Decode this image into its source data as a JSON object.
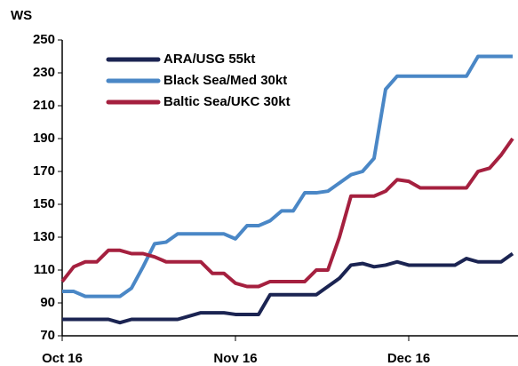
{
  "chart_data": {
    "type": "line",
    "y_label": "WS",
    "categories": [
      "Oct 16",
      null,
      null,
      null,
      null,
      null,
      null,
      null,
      null,
      null,
      null,
      null,
      null,
      null,
      null,
      "Nov 16",
      null,
      null,
      null,
      null,
      null,
      null,
      null,
      null,
      null,
      null,
      null,
      null,
      null,
      null,
      "Dec 16",
      null,
      null,
      null,
      null,
      null,
      null,
      null,
      null,
      null
    ],
    "series": [
      {
        "name": "ARA/USG 55kt",
        "color": "#1b2452",
        "values": [
          80,
          80,
          80,
          80,
          80,
          78,
          80,
          80,
          80,
          80,
          80,
          82,
          84,
          84,
          84,
          83,
          83,
          83,
          95,
          95,
          95,
          95,
          95,
          100,
          105,
          113,
          114,
          112,
          113,
          115,
          113,
          113,
          113,
          113,
          113,
          117,
          115,
          115,
          115,
          120
        ]
      },
      {
        "name": "Black Sea/Med 30kt",
        "color": "#4a87c6",
        "values": [
          97,
          97,
          94,
          94,
          94,
          94,
          99,
          112,
          126,
          127,
          132,
          132,
          132,
          132,
          132,
          129,
          137,
          137,
          140,
          146,
          146,
          157,
          157,
          158,
          163,
          168,
          170,
          178,
          220,
          228,
          228,
          228,
          228,
          228,
          228,
          228,
          240,
          240,
          240,
          240
        ]
      },
      {
        "name": "Baltic Sea/UKC 30kt",
        "color": "#a5203f",
        "values": [
          103,
          112,
          115,
          115,
          122,
          122,
          120,
          120,
          118,
          115,
          115,
          115,
          115,
          108,
          108,
          102,
          100,
          100,
          103,
          103,
          103,
          103,
          110,
          110,
          130,
          155,
          155,
          155,
          158,
          165,
          164,
          160,
          160,
          160,
          160,
          160,
          170,
          172,
          180,
          190
        ]
      }
    ],
    "ylim": [
      70,
      250
    ],
    "yticks": [
      70,
      90,
      110,
      130,
      150,
      170,
      190,
      210,
      230,
      250
    ],
    "legend": "upper left",
    "grid": false
  }
}
